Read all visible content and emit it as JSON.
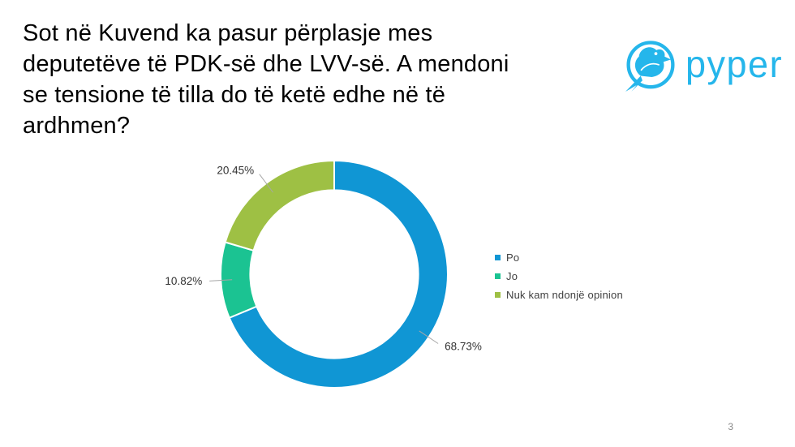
{
  "slide": {
    "title_lines": [
      "Sot në Kuvend ka pasur përplasje mes",
      "deputetëve të PDK-së dhe LVV-së. A mendoni",
      "se tensione të tilla do të ketë edhe në të",
      "ardhmen?"
    ],
    "page_number": "3"
  },
  "logo": {
    "brand": "pyper",
    "icon": "bird-in-circle-icon",
    "color": "#25B6EB"
  },
  "chart_data": {
    "type": "pie",
    "subtype": "donut",
    "title": "",
    "categories": [
      "Po",
      "Jo",
      "Nuk kam ndonjë opinion"
    ],
    "values": [
      68.73,
      10.82,
      20.45
    ],
    "data_labels": [
      "68.73%",
      "10.82%",
      "20.45%"
    ],
    "colors": [
      "#1096D4",
      "#1BC392",
      "#9EC044"
    ],
    "start_angle_deg": 0,
    "direction": "clockwise",
    "donut_hole_ratio": 0.74,
    "legend_position": "right",
    "legend_text_color": "#404040",
    "label_text_color": "#333333",
    "leader_line_color": "#A6A6A6",
    "background": "#FFFFFF"
  }
}
